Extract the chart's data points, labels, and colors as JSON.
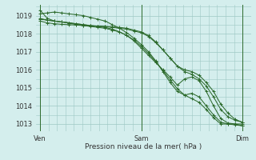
{
  "background_color": "#d4eeed",
  "grid_color": "#9ec8c4",
  "line_color": "#2d6b2d",
  "ylabel_values": [
    1013,
    1014,
    1015,
    1016,
    1017,
    1018,
    1019
  ],
  "xtick_labels": [
    "Ven",
    "Sam",
    "Dim"
  ],
  "xtick_positions": [
    0,
    24,
    48
  ],
  "xlabel": "Pression niveau de la mer( hPa )",
  "ylim": [
    1012.6,
    1019.6
  ],
  "xlim": [
    -1,
    50
  ],
  "series": [
    [
      1019.3,
      1018.85,
      1018.7,
      1018.65,
      1018.6,
      1018.5,
      1018.45,
      1018.4,
      1018.35,
      1018.3,
      1018.2,
      1018.1,
      1017.9,
      1017.6,
      1017.2,
      1016.8,
      1016.4,
      1016.0,
      1015.6,
      1015.15,
      1015.5,
      1015.6,
      1015.4,
      1014.8,
      1014.0,
      1013.3,
      1013.05,
      1013.0,
      1012.9
    ],
    [
      1018.85,
      1018.75,
      1018.7,
      1018.65,
      1018.6,
      1018.55,
      1018.5,
      1018.45,
      1018.42,
      1018.4,
      1018.35,
      1018.3,
      1018.25,
      1018.15,
      1018.05,
      1017.85,
      1017.5,
      1017.1,
      1016.65,
      1016.2,
      1016.0,
      1015.9,
      1015.7,
      1015.3,
      1014.8,
      1014.1,
      1013.6,
      1013.25,
      1013.1
    ],
    [
      1018.7,
      1018.6,
      1018.55,
      1018.52,
      1018.5,
      1018.48,
      1018.45,
      1018.43,
      1018.42,
      1018.4,
      1018.38,
      1018.35,
      1018.3,
      1018.2,
      1018.1,
      1017.9,
      1017.55,
      1017.1,
      1016.65,
      1016.2,
      1015.9,
      1015.75,
      1015.5,
      1015.1,
      1014.5,
      1013.8,
      1013.4,
      1013.2,
      1013.1
    ],
    [
      1019.1,
      1019.15,
      1019.2,
      1019.15,
      1019.1,
      1019.05,
      1019.0,
      1018.9,
      1018.8,
      1018.7,
      1018.5,
      1018.3,
      1018.05,
      1017.75,
      1017.4,
      1017.0,
      1016.5,
      1015.9,
      1015.3,
      1014.8,
      1014.6,
      1014.7,
      1014.5,
      1014.0,
      1013.5,
      1013.1,
      1013.0,
      1012.95,
      1012.9
    ],
    [
      1018.8,
      1018.75,
      1018.7,
      1018.65,
      1018.6,
      1018.55,
      1018.5,
      1018.45,
      1018.4,
      1018.35,
      1018.25,
      1018.1,
      1017.9,
      1017.65,
      1017.3,
      1016.9,
      1016.45,
      1015.95,
      1015.45,
      1014.95,
      1014.6,
      1014.4,
      1014.2,
      1013.8,
      1013.35,
      1013.0,
      1013.0,
      1013.0,
      1013.0
    ]
  ]
}
